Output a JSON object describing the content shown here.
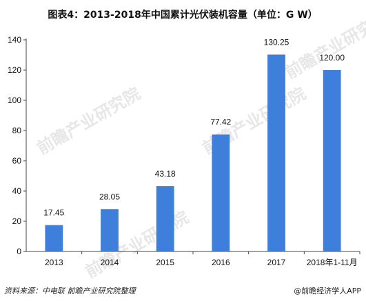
{
  "chart_data": {
    "type": "bar",
    "title": "图表4：2013-2018年中国累计光伏装机容量（单位：G W）",
    "categories": [
      "2013",
      "2014",
      "2015",
      "2016",
      "2017",
      "2018年1-11月"
    ],
    "values": [
      17.45,
      28.05,
      43.18,
      77.42,
      130.25,
      120.0
    ],
    "value_labels": [
      "17.45",
      "28.05",
      "43.18",
      "77.42",
      "130.25",
      "120.00"
    ],
    "ylim": [
      0,
      140
    ],
    "yticks": [
      0,
      20,
      40,
      60,
      80,
      100,
      120,
      140
    ],
    "xlabel": "",
    "ylabel": "",
    "grid": false,
    "legend": "none",
    "bar_color": "#3f7fdc"
  },
  "footer": {
    "source": "资料来源：中电联  前瞻产业研究院整理",
    "brand": "@前瞻经济学人APP"
  },
  "watermark": {
    "text": "前瞻产业研究院"
  }
}
